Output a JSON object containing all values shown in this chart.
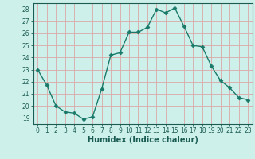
{
  "x": [
    0,
    1,
    2,
    3,
    4,
    5,
    6,
    7,
    8,
    9,
    10,
    11,
    12,
    13,
    14,
    15,
    16,
    17,
    18,
    19,
    20,
    21,
    22,
    23
  ],
  "y": [
    23,
    21.7,
    20.0,
    19.5,
    19.4,
    18.9,
    19.1,
    21.4,
    24.2,
    24.4,
    26.1,
    26.1,
    26.5,
    28.0,
    27.7,
    28.1,
    26.6,
    25.0,
    24.9,
    23.3,
    22.1,
    21.5,
    20.7,
    20.5
  ],
  "line_color": "#1a7a6a",
  "marker": "D",
  "marker_size": 2.5,
  "bg_color": "#cef0eb",
  "grid_color": "#dba8a8",
  "xlabel": "Humidex (Indice chaleur)",
  "xlim": [
    -0.5,
    23.5
  ],
  "ylim": [
    18.5,
    28.5
  ],
  "yticks": [
    19,
    20,
    21,
    22,
    23,
    24,
    25,
    26,
    27,
    28
  ],
  "xticks": [
    0,
    1,
    2,
    3,
    4,
    5,
    6,
    7,
    8,
    9,
    10,
    11,
    12,
    13,
    14,
    15,
    16,
    17,
    18,
    19,
    20,
    21,
    22,
    23
  ],
  "tick_color": "#1a5c52",
  "axis_color": "#1a5c52",
  "label_fontsize": 7,
  "tick_fontsize": 5.5
}
